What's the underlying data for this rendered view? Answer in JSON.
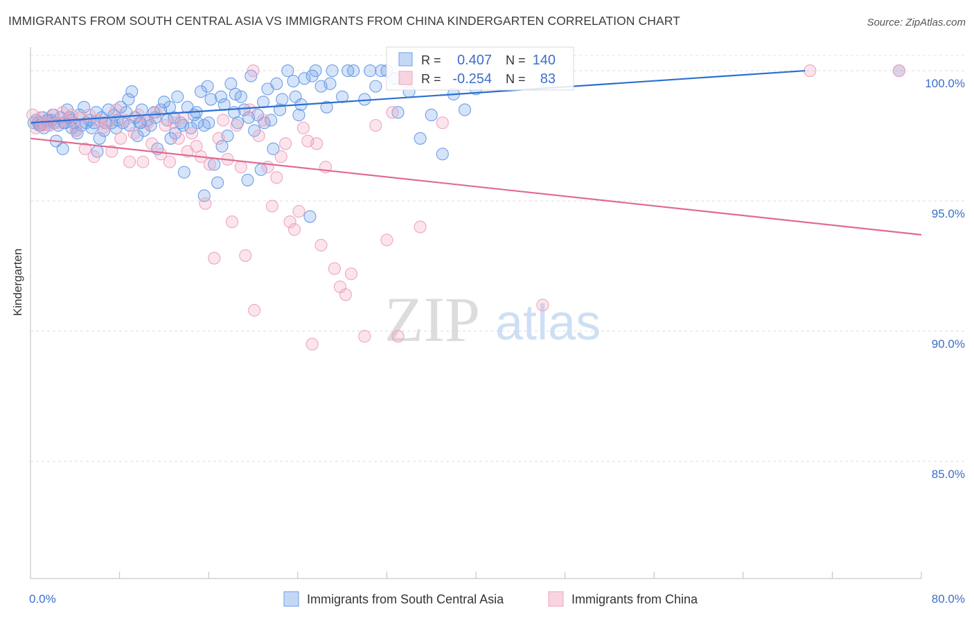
{
  "title": "IMMIGRANTS FROM SOUTH CENTRAL ASIA VS IMMIGRANTS FROM CHINA KINDERGARTEN CORRELATION CHART",
  "source": "Source: ZipAtlas.com",
  "watermark": {
    "zip": "ZIP",
    "atlas": "atlas"
  },
  "colors": {
    "blue": "#6b9ee8",
    "blue_line": "#2a6fd0",
    "pink": "#f0a0bc",
    "pink_line": "#e06a94",
    "axis_text": "#3a6fc8"
  },
  "stats": [
    {
      "r_label": "R =",
      "r": "0.407",
      "n_label": "N =",
      "n": "140"
    },
    {
      "r_label": "R =",
      "r": "-0.254",
      "n_label": "N =",
      "n": "83"
    }
  ],
  "chart_data": {
    "type": "scatter",
    "title": "IMMIGRANTS FROM SOUTH CENTRAL ASIA VS IMMIGRANTS FROM CHINA KINDERGARTEN CORRELATION CHART",
    "xlabel": "",
    "ylabel": "Kindergarten",
    "xlim": [
      0,
      80
    ],
    "ylim": [
      80.5,
      100.8
    ],
    "x_tick_labels": [
      "0.0%",
      "80.0%"
    ],
    "y_ticks": [
      100,
      95,
      90,
      85
    ],
    "y_tick_labels": [
      "100.0%",
      "95.0%",
      "90.0%",
      "85.0%"
    ],
    "grid": true,
    "legend_position": "bottom",
    "series": [
      {
        "name": "Immigrants from South Central Asia",
        "color": "#6b9ee8",
        "trend": {
          "x": [
            0,
            80
          ],
          "y": [
            98.0,
            100.3
          ]
        },
        "points": [
          [
            0.3,
            98.0
          ],
          [
            0.5,
            98.1
          ],
          [
            0.7,
            98.0
          ],
          [
            0.9,
            97.9
          ],
          [
            1.1,
            98.2
          ],
          [
            1.3,
            98.0
          ],
          [
            1.5,
            98.1
          ],
          [
            1.7,
            97.9
          ],
          [
            1.9,
            98.1
          ],
          [
            2.1,
            98.0
          ],
          [
            2.3,
            97.3
          ],
          [
            2.5,
            97.9
          ],
          [
            2.7,
            98.2
          ],
          [
            2.9,
            97.0
          ],
          [
            3.1,
            98.0
          ],
          [
            3.3,
            98.5
          ],
          [
            3.5,
            98.2
          ],
          [
            3.7,
            97.8
          ],
          [
            3.9,
            98.0
          ],
          [
            4.1,
            97.7
          ],
          [
            4.4,
            98.3
          ],
          [
            4.6,
            97.9
          ],
          [
            4.8,
            98.6
          ],
          [
            5.0,
            98.0
          ],
          [
            5.3,
            98.1
          ],
          [
            5.5,
            97.8
          ],
          [
            5.7,
            98.0
          ],
          [
            6.0,
            96.9
          ],
          [
            6.2,
            97.4
          ],
          [
            6.4,
            98.2
          ],
          [
            6.7,
            98.0
          ],
          [
            7.0,
            98.5
          ],
          [
            7.3,
            98.0
          ],
          [
            7.5,
            98.3
          ],
          [
            7.8,
            98.1
          ],
          [
            8.1,
            98.6
          ],
          [
            8.3,
            98.0
          ],
          [
            8.6,
            98.4
          ],
          [
            8.9,
            97.9
          ],
          [
            9.1,
            99.2
          ],
          [
            9.4,
            98.2
          ],
          [
            9.6,
            97.5
          ],
          [
            9.9,
            98.0
          ],
          [
            10.2,
            97.7
          ],
          [
            10.5,
            98.1
          ],
          [
            10.8,
            97.9
          ],
          [
            11.1,
            98.4
          ],
          [
            11.4,
            97.0
          ],
          [
            11.7,
            98.5
          ],
          [
            12.0,
            98.8
          ],
          [
            12.3,
            98.1
          ],
          [
            12.6,
            97.4
          ],
          [
            12.9,
            98.2
          ],
          [
            13.2,
            99.0
          ],
          [
            13.5,
            98.0
          ],
          [
            13.8,
            96.1
          ],
          [
            14.1,
            98.6
          ],
          [
            14.4,
            97.8
          ],
          [
            14.7,
            98.3
          ],
          [
            15.0,
            98.0
          ],
          [
            15.3,
            99.2
          ],
          [
            15.6,
            97.9
          ],
          [
            15.9,
            99.4
          ],
          [
            16.2,
            98.9
          ],
          [
            16.5,
            96.4
          ],
          [
            16.8,
            95.7
          ],
          [
            17.1,
            99.0
          ],
          [
            17.4,
            98.7
          ],
          [
            17.7,
            97.5
          ],
          [
            18.0,
            99.5
          ],
          [
            18.3,
            98.4
          ],
          [
            18.6,
            98.0
          ],
          [
            18.9,
            99.0
          ],
          [
            19.2,
            98.5
          ],
          [
            19.5,
            95.8
          ],
          [
            19.8,
            99.8
          ],
          [
            20.1,
            97.7
          ],
          [
            20.4,
            98.3
          ],
          [
            20.7,
            96.2
          ],
          [
            21.0,
            98.0
          ],
          [
            21.3,
            99.3
          ],
          [
            21.6,
            98.1
          ],
          [
            22.1,
            99.5
          ],
          [
            22.6,
            98.9
          ],
          [
            23.1,
            100.0
          ],
          [
            23.6,
            99.6
          ],
          [
            24.1,
            98.3
          ],
          [
            24.6,
            99.7
          ],
          [
            25.1,
            94.4
          ],
          [
            25.6,
            100.0
          ],
          [
            26.1,
            99.4
          ],
          [
            26.6,
            98.6
          ],
          [
            27.1,
            100.0
          ],
          [
            28.0,
            99.0
          ],
          [
            29.0,
            100.0
          ],
          [
            30.0,
            98.9
          ],
          [
            31.0,
            99.4
          ],
          [
            32.0,
            100.0
          ],
          [
            33.0,
            98.4
          ],
          [
            34.0,
            99.2
          ],
          [
            35.0,
            97.4
          ],
          [
            36.0,
            98.3
          ],
          [
            37.0,
            96.8
          ],
          [
            38.0,
            99.1
          ],
          [
            39.0,
            98.5
          ],
          [
            40.0,
            99.3
          ],
          [
            78.0,
            100.0
          ],
          [
            1.2,
            97.8
          ],
          [
            2.0,
            98.3
          ],
          [
            3.6,
            98.1
          ],
          [
            4.2,
            97.6
          ],
          [
            5.9,
            98.4
          ],
          [
            7.7,
            97.8
          ],
          [
            8.8,
            98.9
          ],
          [
            10.0,
            98.5
          ],
          [
            11.2,
            98.2
          ],
          [
            12.5,
            98.6
          ],
          [
            13.7,
            97.9
          ],
          [
            14.9,
            98.4
          ],
          [
            16.0,
            98.0
          ],
          [
            17.2,
            97.1
          ],
          [
            18.4,
            99.1
          ],
          [
            19.6,
            98.2
          ],
          [
            20.9,
            98.8
          ],
          [
            22.4,
            98.5
          ],
          [
            23.8,
            99.0
          ],
          [
            25.3,
            99.8
          ],
          [
            26.9,
            99.5
          ],
          [
            28.5,
            100.0
          ],
          [
            30.5,
            100.0
          ],
          [
            31.5,
            100.0
          ],
          [
            32.7,
            99.7
          ],
          [
            9.8,
            98.0
          ],
          [
            6.6,
            97.7
          ],
          [
            3.0,
            98.0
          ],
          [
            1.6,
            98.1
          ],
          [
            0.8,
            97.9
          ],
          [
            21.8,
            97.0
          ],
          [
            24.3,
            98.7
          ],
          [
            15.6,
            95.2
          ],
          [
            13.0,
            97.6
          ]
        ]
      },
      {
        "name": "Immigrants from China",
        "color": "#f0a0bc",
        "trend": {
          "x": [
            0,
            80
          ],
          "y": [
            97.4,
            93.7
          ]
        },
        "points": [
          [
            0.2,
            98.3
          ],
          [
            0.5,
            97.8
          ],
          [
            0.9,
            98.2
          ],
          [
            1.3,
            98.0
          ],
          [
            1.7,
            97.9
          ],
          [
            2.1,
            98.3
          ],
          [
            2.5,
            98.0
          ],
          [
            2.9,
            98.4
          ],
          [
            3.3,
            98.1
          ],
          [
            3.7,
            98.3
          ],
          [
            4.1,
            97.7
          ],
          [
            4.5,
            98.2
          ],
          [
            4.9,
            97.0
          ],
          [
            5.3,
            98.3
          ],
          [
            5.7,
            96.7
          ],
          [
            6.1,
            98.1
          ],
          [
            6.5,
            97.8
          ],
          [
            6.9,
            98.0
          ],
          [
            7.3,
            96.9
          ],
          [
            7.7,
            98.5
          ],
          [
            8.1,
            97.4
          ],
          [
            8.5,
            98.1
          ],
          [
            8.9,
            96.5
          ],
          [
            9.3,
            97.6
          ],
          [
            9.7,
            98.3
          ],
          [
            10.1,
            96.5
          ],
          [
            10.5,
            98.0
          ],
          [
            10.9,
            97.2
          ],
          [
            11.3,
            98.4
          ],
          [
            11.7,
            96.8
          ],
          [
            12.1,
            97.9
          ],
          [
            12.5,
            96.5
          ],
          [
            12.9,
            98.0
          ],
          [
            13.3,
            97.4
          ],
          [
            13.7,
            98.2
          ],
          [
            14.1,
            96.9
          ],
          [
            14.5,
            97.6
          ],
          [
            14.9,
            97.1
          ],
          [
            15.3,
            96.7
          ],
          [
            15.7,
            94.9
          ],
          [
            16.1,
            96.4
          ],
          [
            16.5,
            92.8
          ],
          [
            16.9,
            97.4
          ],
          [
            17.3,
            98.1
          ],
          [
            17.7,
            96.6
          ],
          [
            18.1,
            94.2
          ],
          [
            18.5,
            97.9
          ],
          [
            18.9,
            96.3
          ],
          [
            19.3,
            92.9
          ],
          [
            19.7,
            98.5
          ],
          [
            20.1,
            90.8
          ],
          [
            20.5,
            97.5
          ],
          [
            20.9,
            98.1
          ],
          [
            21.3,
            96.3
          ],
          [
            21.7,
            94.8
          ],
          [
            22.1,
            95.9
          ],
          [
            22.5,
            96.7
          ],
          [
            22.9,
            97.2
          ],
          [
            23.3,
            94.2
          ],
          [
            23.7,
            93.9
          ],
          [
            24.1,
            94.6
          ],
          [
            24.5,
            97.8
          ],
          [
            24.9,
            97.3
          ],
          [
            25.3,
            89.5
          ],
          [
            25.7,
            97.2
          ],
          [
            26.1,
            93.3
          ],
          [
            26.5,
            96.3
          ],
          [
            27.3,
            92.4
          ],
          [
            27.8,
            91.7
          ],
          [
            28.3,
            91.4
          ],
          [
            28.8,
            92.2
          ],
          [
            30.0,
            89.8
          ],
          [
            31.0,
            97.9
          ],
          [
            32.0,
            93.5
          ],
          [
            32.5,
            98.4
          ],
          [
            33.0,
            89.8
          ],
          [
            35.0,
            94.0
          ],
          [
            37.0,
            98.0
          ],
          [
            46.0,
            91.0
          ],
          [
            70.0,
            100.0
          ],
          [
            78.0,
            100.0
          ],
          [
            20.0,
            100.0
          ],
          [
            1.0,
            97.9
          ]
        ]
      }
    ]
  }
}
